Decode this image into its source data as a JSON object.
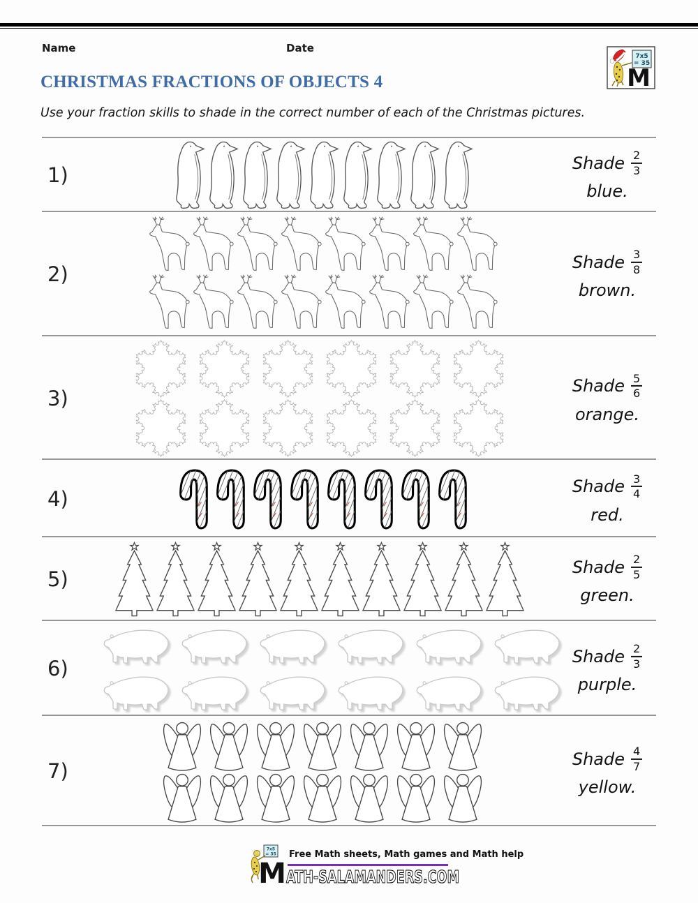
{
  "header": {
    "name_label": "Name",
    "date_label": "Date",
    "title": "CHRISTMAS FRACTIONS OF OBJECTS 4",
    "instruction": "Use your fraction skills to shade in the correct number of each of the Christmas pictures."
  },
  "logo": {
    "board_line1": "7x5",
    "board_line2": "= 35",
    "m_letter": "M"
  },
  "rows": [
    {
      "number": "1)",
      "item": "penguin-icon",
      "count": 9,
      "per_row": 9,
      "shade_word": "Shade",
      "numerator": "2",
      "denominator": "3",
      "color_word": "blue."
    },
    {
      "number": "2)",
      "item": "reindeer-icon",
      "count": 16,
      "per_row": 8,
      "shade_word": "Shade",
      "numerator": "3",
      "denominator": "8",
      "color_word": "brown."
    },
    {
      "number": "3)",
      "item": "snowflake-icon",
      "count": 12,
      "per_row": 6,
      "shade_word": "Shade",
      "numerator": "5",
      "denominator": "6",
      "color_word": "orange."
    },
    {
      "number": "4)",
      "item": "candy-cane-icon",
      "count": 8,
      "per_row": 8,
      "shade_word": "Shade",
      "numerator": "3",
      "denominator": "4",
      "color_word": "red."
    },
    {
      "number": "5)",
      "item": "tree-icon",
      "count": 10,
      "per_row": 10,
      "shade_word": "Shade",
      "numerator": "2",
      "denominator": "5",
      "color_word": "green."
    },
    {
      "number": "6)",
      "item": "polar-bear-icon",
      "count": 12,
      "per_row": 6,
      "shade_word": "Shade",
      "numerator": "2",
      "denominator": "3",
      "color_word": "purple."
    },
    {
      "number": "7)",
      "item": "angel-icon",
      "count": 14,
      "per_row": 7,
      "shade_word": "Shade",
      "numerator": "4",
      "denominator": "7",
      "color_word": "yellow."
    }
  ],
  "footer": {
    "tagline": "Free Math sheets, Math games and Math help",
    "site_text": "ATH-SALAMANDERS.COM",
    "board_line1": "7x5",
    "board_line2": "= 35",
    "m_letter": "M"
  },
  "colors": {
    "title_blue": "#3e6ca8",
    "divider_gray": "#979797",
    "accent_purple": "#7a2fb0"
  }
}
